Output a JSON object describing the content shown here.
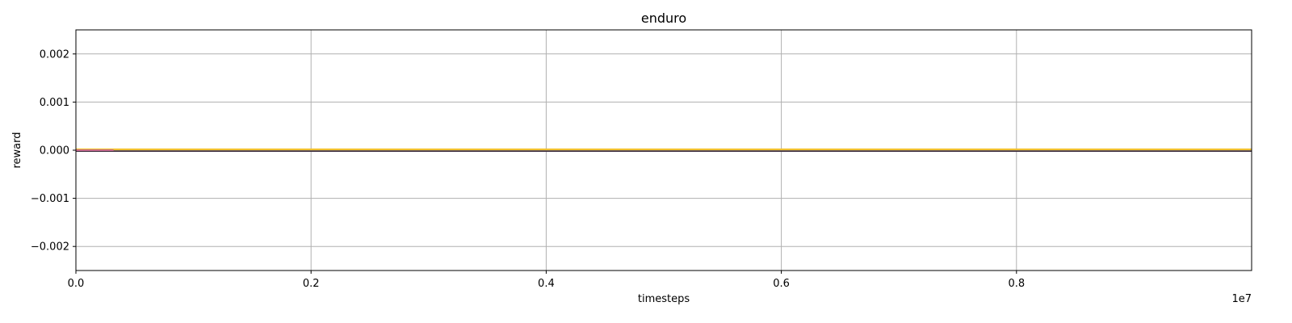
{
  "chart_data": {
    "type": "line",
    "title": "enduro",
    "xlabel": "timesteps",
    "ylabel": "reward",
    "x_offset_label": "1e7",
    "xlim": [
      0,
      1.0
    ],
    "ylim": [
      -0.0025,
      0.0025
    ],
    "x_ticks": [
      0.0,
      0.2,
      0.4,
      0.6,
      0.8
    ],
    "x_tick_labels": [
      "0.0",
      "0.2",
      "0.4",
      "0.6",
      "0.8"
    ],
    "y_ticks": [
      0.002,
      0.001,
      0.0,
      -0.001,
      -0.002
    ],
    "y_tick_labels": [
      "0.002",
      "0.001",
      "0.000",
      "−0.001",
      "−0.002"
    ],
    "grid": true,
    "series": [
      {
        "color": "#f2c12e",
        "x": [
          0.0,
          1.0
        ],
        "y": [
          0.0,
          0.0
        ]
      },
      {
        "color": "#3b2a3a",
        "x": [
          0.0,
          1.0
        ],
        "y": [
          0.0,
          0.0
        ]
      },
      {
        "color": "#c86b8a",
        "x": [
          0.0,
          0.032
        ],
        "y": [
          0.0,
          0.0
        ]
      }
    ]
  }
}
